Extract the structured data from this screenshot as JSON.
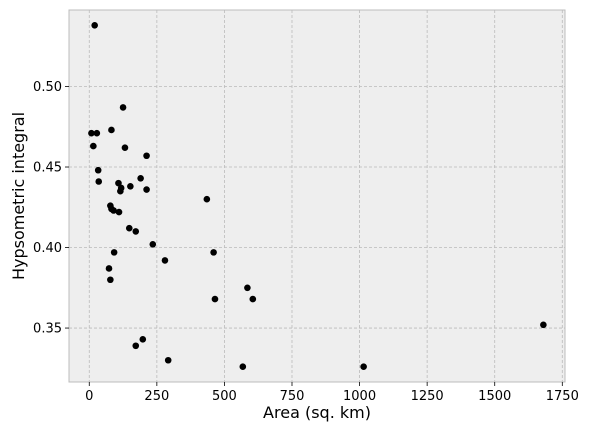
{
  "chart_data": {
    "type": "scatter",
    "title": "",
    "xlabel": "Area (sq. km)",
    "ylabel": "Hypsometric integral",
    "xlim": [
      -75,
      1760
    ],
    "ylim": [
      0.3165,
      0.5475
    ],
    "xticks": [
      0,
      250,
      500,
      750,
      1000,
      1250,
      1500,
      1750
    ],
    "yticks": [
      0.35,
      0.4,
      0.45,
      0.5
    ],
    "grid": true,
    "background": "#eeeeee",
    "grid_color": "#bbbbbb",
    "marker_color": "#000000",
    "series": [
      {
        "points": [
          [
            20,
            0.538
          ],
          [
            8,
            0.471
          ],
          [
            28,
            0.471
          ],
          [
            15,
            0.463
          ],
          [
            33,
            0.448
          ],
          [
            35,
            0.441
          ],
          [
            125,
            0.487
          ],
          [
            82,
            0.473
          ],
          [
            132,
            0.462
          ],
          [
            212,
            0.457
          ],
          [
            190,
            0.443
          ],
          [
            108,
            0.44
          ],
          [
            118,
            0.437
          ],
          [
            152,
            0.438
          ],
          [
            115,
            0.435
          ],
          [
            212,
            0.436
          ],
          [
            78,
            0.426
          ],
          [
            82,
            0.424
          ],
          [
            90,
            0.423
          ],
          [
            110,
            0.422
          ],
          [
            148,
            0.412
          ],
          [
            172,
            0.41
          ],
          [
            235,
            0.402
          ],
          [
            92,
            0.397
          ],
          [
            280,
            0.392
          ],
          [
            73,
            0.387
          ],
          [
            78,
            0.38
          ],
          [
            435,
            0.43
          ],
          [
            460,
            0.397
          ],
          [
            585,
            0.375
          ],
          [
            465,
            0.368
          ],
          [
            605,
            0.368
          ],
          [
            198,
            0.343
          ],
          [
            172,
            0.339
          ],
          [
            292,
            0.33
          ],
          [
            568,
            0.326
          ],
          [
            1015,
            0.326
          ],
          [
            1680,
            0.352
          ]
        ]
      }
    ]
  }
}
